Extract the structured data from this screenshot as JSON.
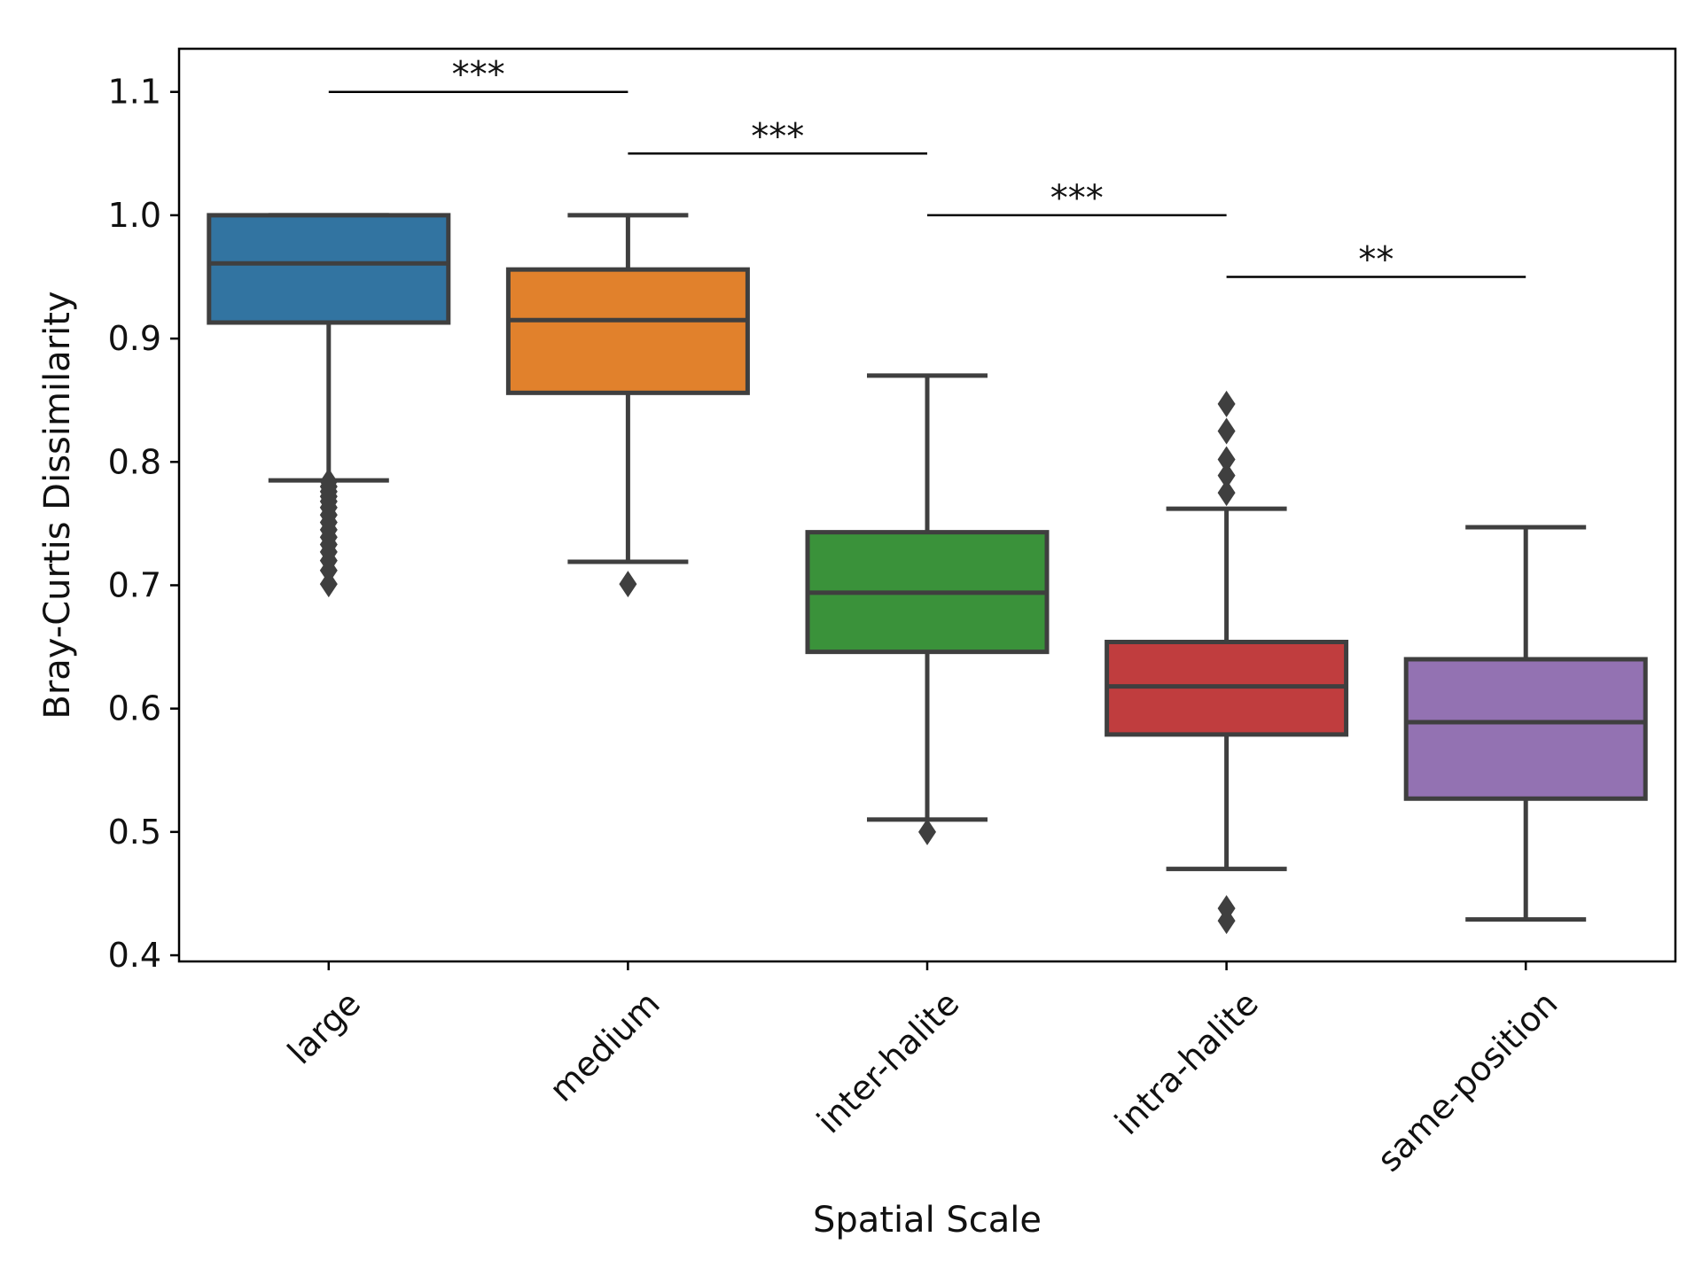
{
  "chart_data": {
    "type": "box",
    "title": "",
    "xlabel": "Spatial Scale",
    "ylabel": "Bray-Curtis Dissimilarity",
    "ylim": [
      0.395,
      1.135
    ],
    "yticks": [
      0.4,
      0.5,
      0.6,
      0.7,
      0.8,
      0.9,
      1.0,
      1.1
    ],
    "ytick_labels": [
      "0.4",
      "0.5",
      "0.6",
      "0.7",
      "0.8",
      "0.9",
      "1.0",
      "1.1"
    ],
    "grid": false,
    "categories": [
      "large",
      "medium",
      "inter-halite",
      "intra-halite",
      "same-position"
    ],
    "boxes": [
      {
        "name": "large",
        "color": "#3274a1",
        "whisker_low": 0.785,
        "q1": 0.913,
        "median": 0.961,
        "q3": 1.0,
        "whisker_high": 1.0,
        "outliers": [
          0.784,
          0.78,
          0.776,
          0.772,
          0.768,
          0.763,
          0.757,
          0.751,
          0.745,
          0.739,
          0.733,
          0.727,
          0.72,
          0.712,
          0.701
        ]
      },
      {
        "name": "medium",
        "color": "#e1812c",
        "whisker_low": 0.719,
        "q1": 0.856,
        "median": 0.915,
        "q3": 0.956,
        "whisker_high": 1.0,
        "outliers": [
          0.701
        ]
      },
      {
        "name": "inter-halite",
        "color": "#3a923a",
        "whisker_low": 0.51,
        "q1": 0.646,
        "median": 0.694,
        "q3": 0.743,
        "whisker_high": 0.87,
        "outliers": [
          0.5
        ]
      },
      {
        "name": "intra-halite",
        "color": "#c03d3e",
        "whisker_low": 0.47,
        "q1": 0.579,
        "median": 0.618,
        "q3": 0.654,
        "whisker_high": 0.762,
        "outliers": [
          0.847,
          0.825,
          0.802,
          0.789,
          0.775,
          0.438,
          0.428
        ]
      },
      {
        "name": "same-position",
        "color": "#9372b2",
        "whisker_low": 0.429,
        "q1": 0.527,
        "median": 0.589,
        "q3": 0.64,
        "whisker_high": 0.747,
        "outliers": []
      }
    ],
    "annotations": [
      {
        "from": 0,
        "to": 1,
        "y": 1.1,
        "label": "***"
      },
      {
        "from": 1,
        "to": 2,
        "y": 1.05,
        "label": "***"
      },
      {
        "from": 2,
        "to": 3,
        "y": 1.0,
        "label": "***"
      },
      {
        "from": 3,
        "to": 4,
        "y": 0.95,
        "label": "**"
      }
    ],
    "edge_color": "#3f3f3f"
  }
}
